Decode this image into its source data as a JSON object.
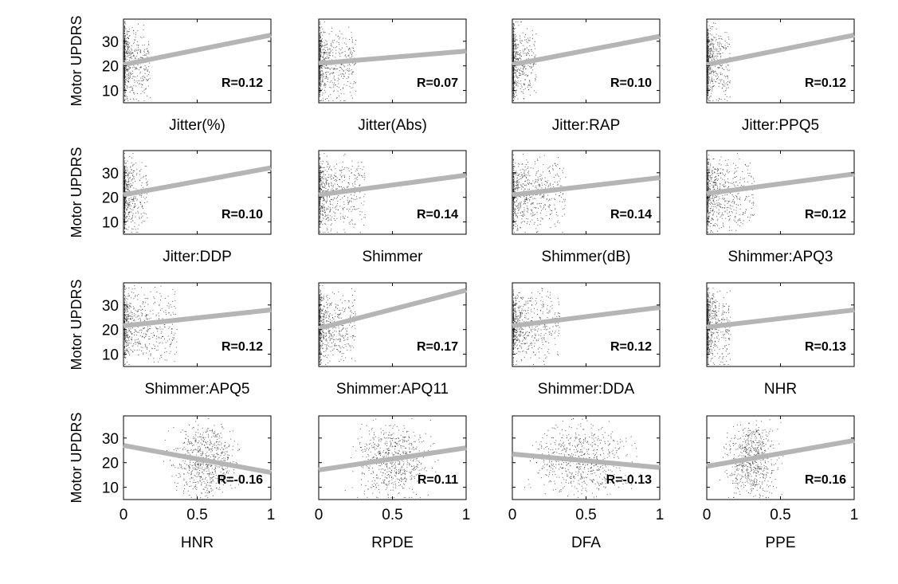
{
  "figure": {
    "ylabel": "Motor UPDRS",
    "y_ticks": [
      "10",
      "20",
      "30"
    ],
    "x_ticks": [
      "0",
      "0.5",
      "1"
    ]
  },
  "chart_data": [
    {
      "type": "scatter",
      "xlabel": "Jitter(%)",
      "ylabel": "Motor UPDRS",
      "r_label": "R=0.12",
      "r": 0.12,
      "xlim": [
        0,
        1
      ],
      "ylim": [
        5,
        39
      ],
      "fit_line": [
        [
          0,
          20.5
        ],
        [
          1,
          32.5
        ]
      ],
      "point_cloud": "dense near x=0-0.1, y 6-38"
    },
    {
      "type": "scatter",
      "xlabel": "Jitter(Abs)",
      "ylabel": "Motor UPDRS",
      "r_label": "R=0.07",
      "r": 0.07,
      "xlim": [
        0,
        1
      ],
      "ylim": [
        5,
        39
      ],
      "fit_line": [
        [
          0,
          21.0
        ],
        [
          1,
          26.0
        ]
      ],
      "point_cloud": "dense near x=0-0.15, y 6-38"
    },
    {
      "type": "scatter",
      "xlabel": "Jitter:RAP",
      "ylabel": "Motor UPDRS",
      "r_label": "R=0.10",
      "r": 0.1,
      "xlim": [
        0,
        1
      ],
      "ylim": [
        5,
        39
      ],
      "fit_line": [
        [
          0,
          20.5
        ],
        [
          1,
          32.0
        ]
      ],
      "point_cloud": "dense near x=0-0.1, y 6-38"
    },
    {
      "type": "scatter",
      "xlabel": "Jitter:PPQ5",
      "ylabel": "Motor UPDRS",
      "r_label": "R=0.12",
      "r": 0.12,
      "xlim": [
        0,
        1
      ],
      "ylim": [
        5,
        39
      ],
      "fit_line": [
        [
          0,
          20.5
        ],
        [
          1,
          32.5
        ]
      ],
      "point_cloud": "dense near x=0-0.1, y 6-38"
    },
    {
      "type": "scatter",
      "xlabel": "Jitter:DDP",
      "ylabel": "Motor UPDRS",
      "r_label": "R=0.10",
      "r": 0.1,
      "xlim": [
        0,
        1
      ],
      "ylim": [
        5,
        39
      ],
      "fit_line": [
        [
          0,
          21.0
        ],
        [
          1,
          32.0
        ]
      ],
      "point_cloud": "dense near x=0-0.1, y 6-38"
    },
    {
      "type": "scatter",
      "xlabel": "Shimmer",
      "ylabel": "Motor UPDRS",
      "r_label": "R=0.14",
      "r": 0.14,
      "xlim": [
        0,
        1
      ],
      "ylim": [
        5,
        39
      ],
      "fit_line": [
        [
          0,
          21.0
        ],
        [
          1,
          29.0
        ]
      ],
      "point_cloud": "dense near x=0-0.2, y 6-38"
    },
    {
      "type": "scatter",
      "xlabel": "Shimmer(dB)",
      "ylabel": "Motor UPDRS",
      "r_label": "R=0.14",
      "r": 0.14,
      "xlim": [
        0,
        1
      ],
      "ylim": [
        5,
        39
      ],
      "fit_line": [
        [
          0,
          21.0
        ],
        [
          1,
          28.0
        ]
      ],
      "point_cloud": "dense near x=0-0.25, y 6-38"
    },
    {
      "type": "scatter",
      "xlabel": "Shimmer:APQ3",
      "ylabel": "Motor UPDRS",
      "r_label": "R=0.12",
      "r": 0.12,
      "xlim": [
        0,
        1
      ],
      "ylim": [
        5,
        39
      ],
      "fit_line": [
        [
          0,
          21.5
        ],
        [
          1,
          29.5
        ]
      ],
      "point_cloud": "dense near x=0-0.2, y 6-38"
    },
    {
      "type": "scatter",
      "xlabel": "Shimmer:APQ5",
      "ylabel": "Motor UPDRS",
      "r_label": "R=0.12",
      "r": 0.12,
      "xlim": [
        0,
        1
      ],
      "ylim": [
        5,
        39
      ],
      "fit_line": [
        [
          0,
          21.5
        ],
        [
          1,
          28.0
        ]
      ],
      "point_cloud": "dense near x=0-0.25, y 6-38"
    },
    {
      "type": "scatter",
      "xlabel": "Shimmer:APQ11",
      "ylabel": "Motor UPDRS",
      "r_label": "R=0.17",
      "r": 0.17,
      "xlim": [
        0,
        1
      ],
      "ylim": [
        5,
        39
      ],
      "fit_line": [
        [
          0,
          20.5
        ],
        [
          1,
          36.0
        ]
      ],
      "point_cloud": "dense near x=0-0.15, y 6-38"
    },
    {
      "type": "scatter",
      "xlabel": "Shimmer:DDA",
      "ylabel": "Motor UPDRS",
      "r_label": "R=0.12",
      "r": 0.12,
      "xlim": [
        0,
        1
      ],
      "ylim": [
        5,
        39
      ],
      "fit_line": [
        [
          0,
          21.5
        ],
        [
          1,
          29.0
        ]
      ],
      "point_cloud": "dense near x=0-0.2, y 6-38"
    },
    {
      "type": "scatter",
      "xlabel": "NHR",
      "ylabel": "Motor UPDRS",
      "r_label": "R=0.13",
      "r": 0.13,
      "xlim": [
        0,
        1
      ],
      "ylim": [
        5,
        39
      ],
      "fit_line": [
        [
          0,
          21.0
        ],
        [
          1,
          28.0
        ]
      ],
      "point_cloud": "dense near x=0-0.1, y 6-38"
    },
    {
      "type": "scatter",
      "xlabel": "HNR",
      "ylabel": "Motor UPDRS",
      "r_label": "R=-0.16",
      "r": -0.16,
      "xlim": [
        0,
        1
      ],
      "ylim": [
        5,
        39
      ],
      "fit_line": [
        [
          0,
          27.0
        ],
        [
          1,
          16.0
        ]
      ],
      "point_cloud": "dense x 0.35-0.8, y 6-38",
      "x_ticks": [
        "0",
        "0.5",
        "1"
      ]
    },
    {
      "type": "scatter",
      "xlabel": "RPDE",
      "ylabel": "Motor UPDRS",
      "r_label": "R=0.11",
      "r": 0.11,
      "xlim": [
        0,
        1
      ],
      "ylim": [
        5,
        39
      ],
      "fit_line": [
        [
          0,
          17.0
        ],
        [
          1,
          26.0
        ]
      ],
      "point_cloud": "dense x 0.2-0.8, y 6-38",
      "x_ticks": [
        "0",
        "0.5",
        "1"
      ]
    },
    {
      "type": "scatter",
      "xlabel": "DFA",
      "ylabel": "Motor UPDRS",
      "r_label": "R=-0.13",
      "r": -0.13,
      "xlim": [
        0,
        1
      ],
      "ylim": [
        5,
        39
      ],
      "fit_line": [
        [
          0,
          23.5
        ],
        [
          1,
          18.0
        ]
      ],
      "point_cloud": "dense x 0-0.8, y 6-38",
      "x_ticks": [
        "0",
        "0.5",
        "1"
      ]
    },
    {
      "type": "scatter",
      "xlabel": "PPE",
      "ylabel": "Motor UPDRS",
      "r_label": "R=0.16",
      "r": 0.16,
      "xlim": [
        0,
        1
      ],
      "ylim": [
        5,
        39
      ],
      "fit_line": [
        [
          0,
          18.5
        ],
        [
          1,
          29.0
        ]
      ],
      "point_cloud": "dense x 0.05-0.5, y 6-38",
      "x_ticks": [
        "0",
        "0.5",
        "1"
      ]
    }
  ]
}
